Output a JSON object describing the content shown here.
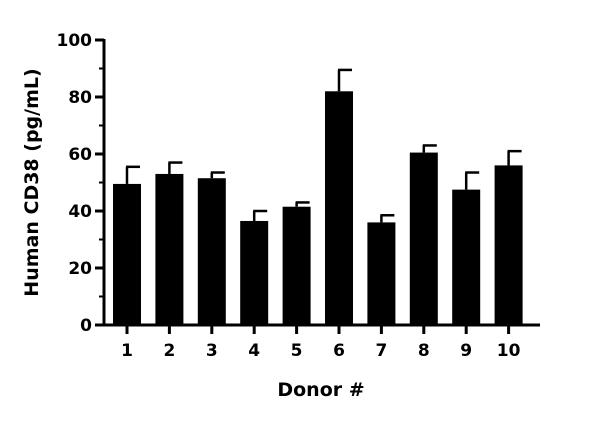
{
  "chart_data": {
    "type": "bar",
    "title": "",
    "xlabel": "Donor #",
    "ylabel": "Human CD38 (pg/mL)",
    "categories": [
      "1",
      "2",
      "3",
      "4",
      "5",
      "6",
      "7",
      "8",
      "9",
      "10"
    ],
    "values": [
      49.5,
      53,
      51.5,
      36.5,
      41.5,
      82,
      36,
      60.5,
      47.5,
      56
    ],
    "errors": [
      6,
      4,
      2,
      3.5,
      1.5,
      7.5,
      2.5,
      2.5,
      6,
      5
    ],
    "ylim": [
      0,
      100
    ],
    "yticks": [
      0,
      20,
      40,
      60,
      80,
      100
    ],
    "bar_color": "#000000",
    "grid": false,
    "legend": "none"
  }
}
